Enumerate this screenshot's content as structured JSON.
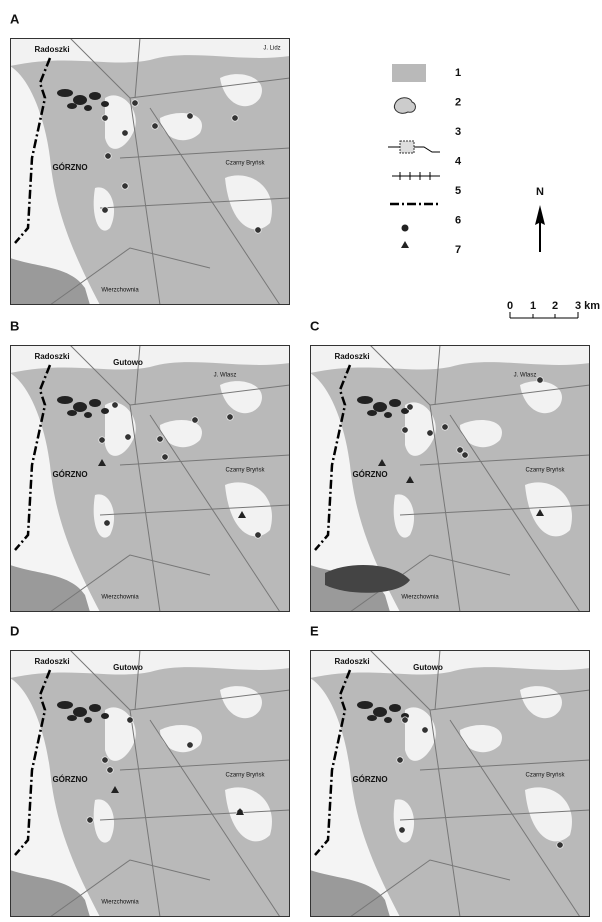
{
  "panels": [
    {
      "letter": "A",
      "labels": [
        "Radoszki",
        "GÓRZNO",
        "J. Lidz",
        "Czarny Bryńsk",
        "Wierzchownia"
      ]
    },
    {
      "letter": "B",
      "labels": [
        "Radoszki",
        "Gutowo",
        "GÓRZNO",
        "J. Wlasz",
        "Czarny Bryńsk",
        "Wierzchownia"
      ]
    },
    {
      "letter": "C",
      "labels": [
        "Radoszki",
        "GÓRZNO",
        "J. Wlasz",
        "Czarny Bryńsk",
        "Wierzchownia"
      ]
    },
    {
      "letter": "D",
      "labels": [
        "Radoszki",
        "Gutowo",
        "GÓRZNO",
        "Czarny Bryńsk",
        "Wierzchownia"
      ]
    },
    {
      "letter": "E",
      "labels": [
        "Radoszki",
        "Gutowo",
        "GÓRZNO",
        "Czarny Bryńsk"
      ]
    }
  ],
  "legend": [
    "1",
    "2",
    "3",
    "4",
    "5",
    "6",
    "7"
  ],
  "north": "N",
  "scale": [
    "0",
    "1",
    "2",
    "3 km"
  ]
}
